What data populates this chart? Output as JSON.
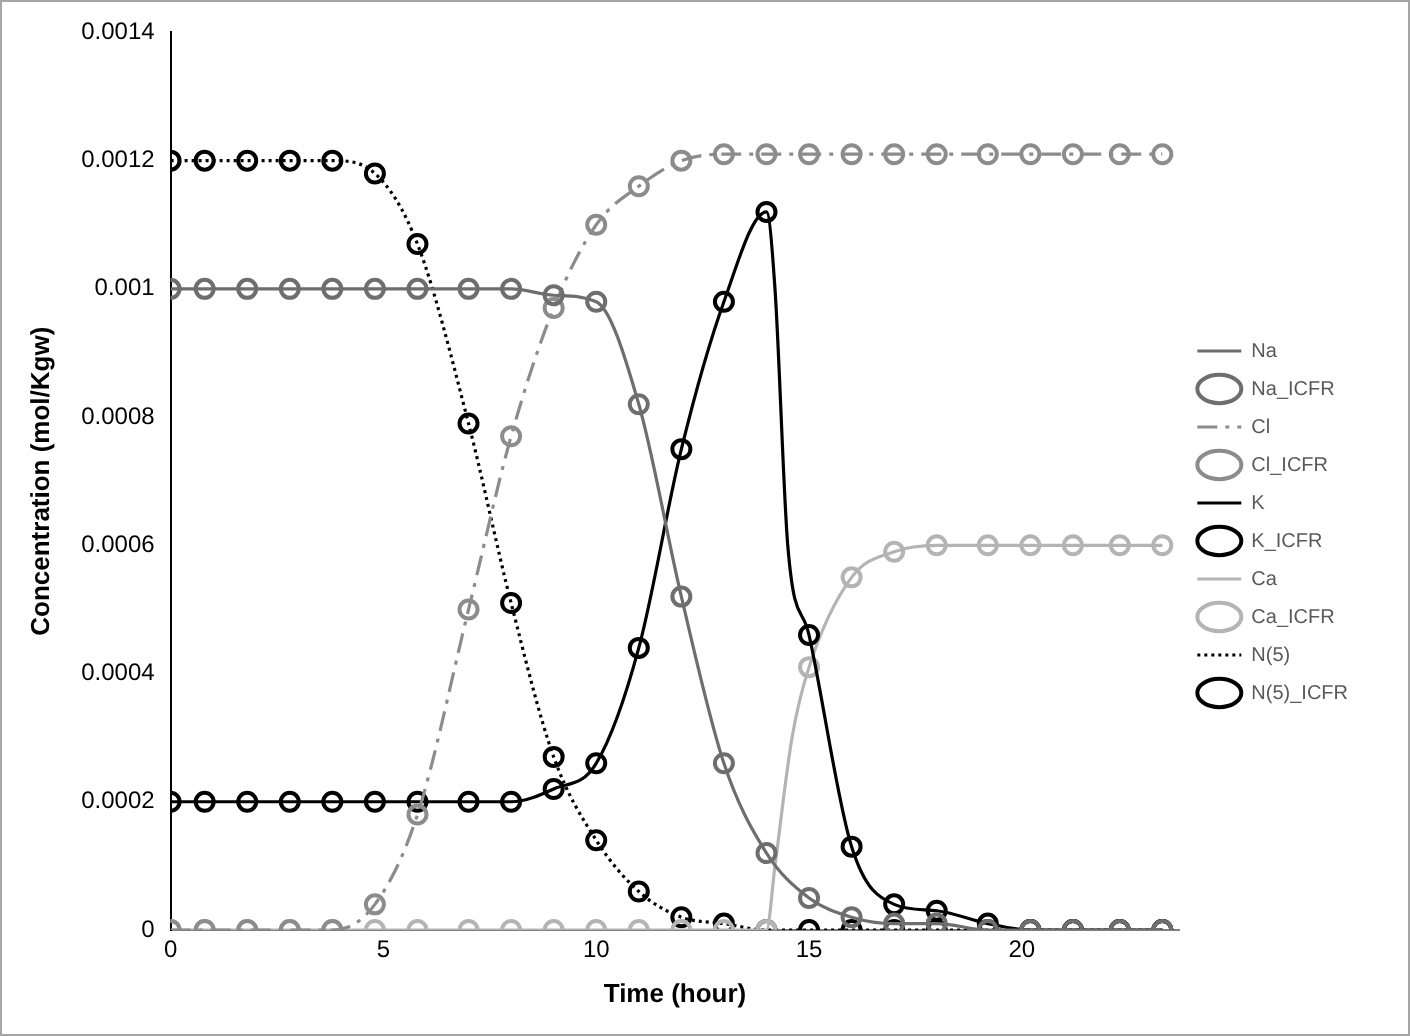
{
  "chart_data": {
    "type": "line",
    "xlabel": "Time (hour)",
    "ylabel": "Concentration (mol/Kgw)",
    "x": [
      0,
      0.8,
      1.8,
      2.8,
      3.8,
      4.8,
      5.8,
      7,
      8,
      9,
      10,
      11,
      12,
      13,
      14,
      15,
      16,
      17,
      18,
      19.2,
      20.2,
      21.2,
      22.3,
      23.3
    ],
    "xlim": [
      0,
      23.7
    ],
    "xticks": [
      0,
      5,
      10,
      15,
      20
    ],
    "ylim": [
      0,
      0.0014
    ],
    "yticks": [
      0,
      0.0002,
      0.0004,
      0.0006,
      0.0008,
      0.001,
      0.0012,
      0.0014
    ],
    "grid": false,
    "legend": "right",
    "series": [
      {
        "name": "Na",
        "type": "line",
        "marker": "none",
        "line_style": "solid",
        "color": "#6e6e6e",
        "values": [
          0.001,
          0.001,
          0.001,
          0.001,
          0.001,
          0.001,
          0.001,
          0.001,
          0.001,
          0.00099,
          0.00098,
          0.00082,
          0.00052,
          0.00026,
          0.00012,
          5e-05,
          2e-05,
          1e-05,
          1e-05,
          0,
          0,
          0,
          0,
          0
        ]
      },
      {
        "name": "Na_ICFR",
        "type": "scatter",
        "marker": "circle",
        "color": "#6e6e6e",
        "values": [
          0.001,
          0.001,
          0.001,
          0.001,
          0.001,
          0.001,
          0.001,
          0.001,
          0.001,
          0.00099,
          0.00098,
          0.00082,
          0.00052,
          0.00026,
          0.00012,
          5e-05,
          2e-05,
          1e-05,
          1e-05,
          0,
          0,
          0,
          0,
          0
        ]
      },
      {
        "name": "Cl",
        "type": "line",
        "marker": "none",
        "line_style": "dashed",
        "color": "#8c8c8c",
        "values": [
          0,
          0,
          0,
          0,
          0,
          4e-05,
          0.00018,
          0.0005,
          0.00077,
          0.00097,
          0.0011,
          0.00116,
          0.0012,
          0.00121,
          0.00121,
          0.00121,
          0.00121,
          0.00121,
          0.00121,
          0.00121,
          0.00121,
          0.00121,
          0.00121,
          0.00121
        ]
      },
      {
        "name": "Cl_ICFR",
        "type": "scatter",
        "marker": "circle",
        "color": "#8c8c8c",
        "values": [
          0,
          0,
          0,
          0,
          0,
          4e-05,
          0.00018,
          0.0005,
          0.00077,
          0.00097,
          0.0011,
          0.00116,
          0.0012,
          0.00121,
          0.00121,
          0.00121,
          0.00121,
          0.00121,
          0.00121,
          0.00121,
          0.00121,
          0.00121,
          0.00121,
          0.00121
        ]
      },
      {
        "name": "K",
        "type": "line",
        "marker": "none",
        "line_style": "solid",
        "color": "#000000",
        "x": [
          0,
          3.8,
          8,
          9,
          10,
          11,
          12,
          13,
          14,
          14.2,
          14.5,
          15,
          16,
          17,
          18,
          19.2,
          20.2,
          23.3
        ],
        "values": [
          0.0002,
          0.0002,
          0.0002,
          0.00022,
          0.00026,
          0.00044,
          0.00075,
          0.00098,
          0.00112,
          0.001,
          0.0006,
          0.00046,
          0.00013,
          4e-05,
          3e-05,
          1e-05,
          0,
          0
        ]
      },
      {
        "name": "K_ICFR",
        "type": "scatter",
        "marker": "circle",
        "color": "#000000",
        "values": [
          0.0002,
          0.0002,
          0.0002,
          0.0002,
          0.0002,
          0.0002,
          0.0002,
          0.0002,
          0.0002,
          0.00022,
          0.00026,
          0.00044,
          0.00075,
          0.00098,
          0.00112,
          0.00046,
          0.00013,
          4e-05,
          3e-05,
          1e-05,
          0,
          0,
          0,
          0
        ]
      },
      {
        "name": "Ca",
        "type": "line",
        "marker": "none",
        "line_style": "solid",
        "color": "#b4b4b4",
        "x": [
          0,
          14,
          14.2,
          14.6,
          15,
          16,
          17,
          18,
          19.2,
          23.3
        ],
        "values": [
          0,
          0,
          0.0001,
          0.0003,
          0.00041,
          0.00055,
          0.00059,
          0.0006,
          0.0006,
          0.0006
        ]
      },
      {
        "name": "Ca_ICFR",
        "type": "scatter",
        "marker": "circle",
        "color": "#b4b4b4",
        "values": [
          0,
          0,
          0,
          0,
          0,
          0,
          0,
          0,
          0,
          0,
          0,
          0,
          0,
          0,
          0,
          0.00041,
          0.00055,
          0.00059,
          0.0006,
          0.0006,
          0.0006,
          0.0006,
          0.0006,
          0.0006
        ]
      },
      {
        "name": "N(5)",
        "type": "line",
        "marker": "none",
        "line_style": "dotted",
        "color": "#000000",
        "values": [
          0.0012,
          0.0012,
          0.0012,
          0.0012,
          0.0012,
          0.00118,
          0.00107,
          0.00079,
          0.00051,
          0.00027,
          0.00014,
          6e-05,
          2e-05,
          1e-05,
          0,
          0,
          0,
          0,
          0,
          0,
          0,
          0,
          0,
          0
        ]
      },
      {
        "name": "N(5)_ICFR",
        "type": "scatter",
        "marker": "circle",
        "color": "#000000",
        "values": [
          0.0012,
          0.0012,
          0.0012,
          0.0012,
          0.0012,
          0.00118,
          0.00107,
          0.00079,
          0.00051,
          0.00027,
          0.00014,
          6e-05,
          2e-05,
          1e-05,
          0,
          0,
          0,
          0,
          0,
          0,
          0,
          0,
          0,
          0
        ]
      }
    ]
  }
}
